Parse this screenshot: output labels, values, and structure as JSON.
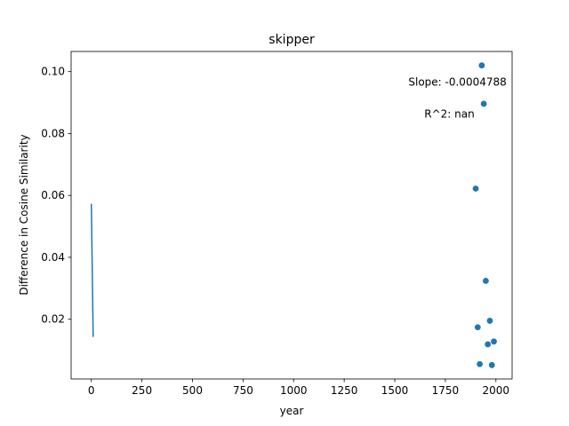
{
  "chart_data": {
    "type": "scatter",
    "title": "skipper",
    "xlabel": "year",
    "ylabel": "Difference in Cosine Similarity",
    "xlim": [
      -100,
      2080
    ],
    "ylim": [
      0.0007,
      0.1065
    ],
    "xticks": [
      0,
      250,
      500,
      750,
      1000,
      1250,
      1500,
      1750,
      2000
    ],
    "yticks": [
      0.02,
      0.04,
      0.06,
      0.08,
      0.1
    ],
    "ytick_labels": [
      "0.02",
      "0.04",
      "0.06",
      "0.08",
      "0.10"
    ],
    "grid": false,
    "series": [
      {
        "kind": "scatter",
        "color": "#1f77b4",
        "points": [
          {
            "x": 1900,
            "y": 0.0622
          },
          {
            "x": 1910,
            "y": 0.0174
          },
          {
            "x": 1920,
            "y": 0.0055
          },
          {
            "x": 1930,
            "y": 0.102
          },
          {
            "x": 1940,
            "y": 0.0896
          },
          {
            "x": 1950,
            "y": 0.0324
          },
          {
            "x": 1960,
            "y": 0.0119
          },
          {
            "x": 1970,
            "y": 0.0195
          },
          {
            "x": 1980,
            "y": 0.0052
          },
          {
            "x": 1990,
            "y": 0.0128
          }
        ]
      },
      {
        "kind": "line",
        "color": "#1f77b4",
        "points": [
          {
            "x": 0,
            "y": 0.0573
          },
          {
            "x": 9,
            "y": 0.0143
          }
        ]
      }
    ],
    "annotations": [
      {
        "text": "Slope: -0.0004788",
        "x": 1810,
        "y": 0.0955
      },
      {
        "text": "R^2: nan",
        "x": 1770,
        "y": 0.0852
      }
    ]
  }
}
